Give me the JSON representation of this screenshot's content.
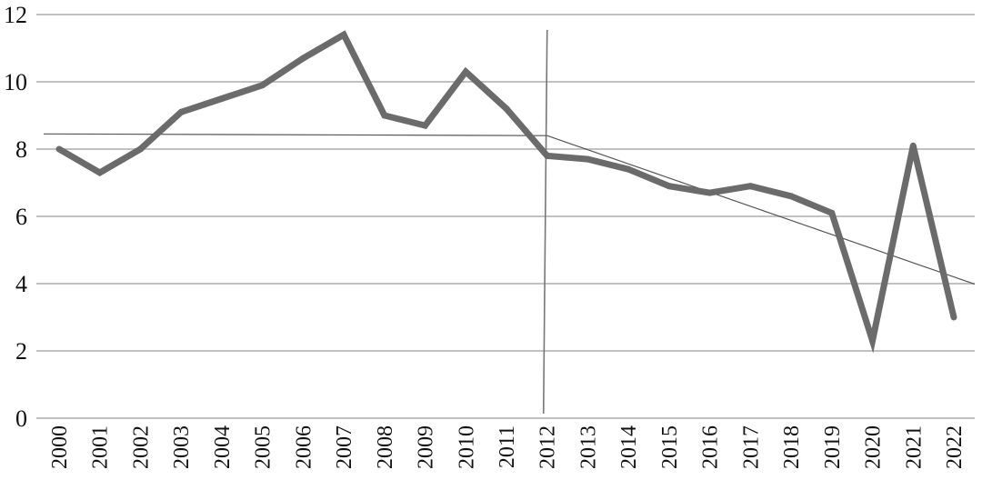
{
  "chart_data": {
    "type": "line",
    "title": "",
    "xlabel": "",
    "ylabel": "",
    "ylim": [
      0,
      12
    ],
    "yticks": [
      "0",
      "2",
      "4",
      "6",
      "8",
      "10",
      "12"
    ],
    "grid": true,
    "categories": [
      "2000",
      "2001",
      "2002",
      "2003",
      "2004",
      "2005",
      "2006",
      "2007",
      "2008",
      "2009",
      "2010",
      "2011",
      "2012",
      "2013",
      "2014",
      "2015",
      "2016",
      "2017",
      "2018",
      "2019",
      "2020",
      "2021",
      "2022"
    ],
    "series": [
      {
        "values": [
          8.0,
          7.3,
          8.0,
          9.1,
          9.5,
          9.9,
          10.7,
          11.4,
          9.0,
          8.7,
          10.3,
          9.2,
          7.8,
          7.7,
          7.4,
          6.9,
          6.7,
          6.9,
          6.6,
          6.1,
          2.3,
          8.1,
          3.0
        ],
        "color": "#6b6b6b"
      }
    ],
    "trendlines": [
      {
        "from": {
          "x": "2000",
          "y": 8.45
        },
        "to": {
          "x": "2012",
          "y": 8.4
        }
      },
      {
        "from": {
          "x": "2012",
          "y": 8.4
        },
        "to": {
          "x": "2022",
          "y": 4.2
        }
      }
    ],
    "vertical_marker": {
      "x": "2012"
    }
  }
}
